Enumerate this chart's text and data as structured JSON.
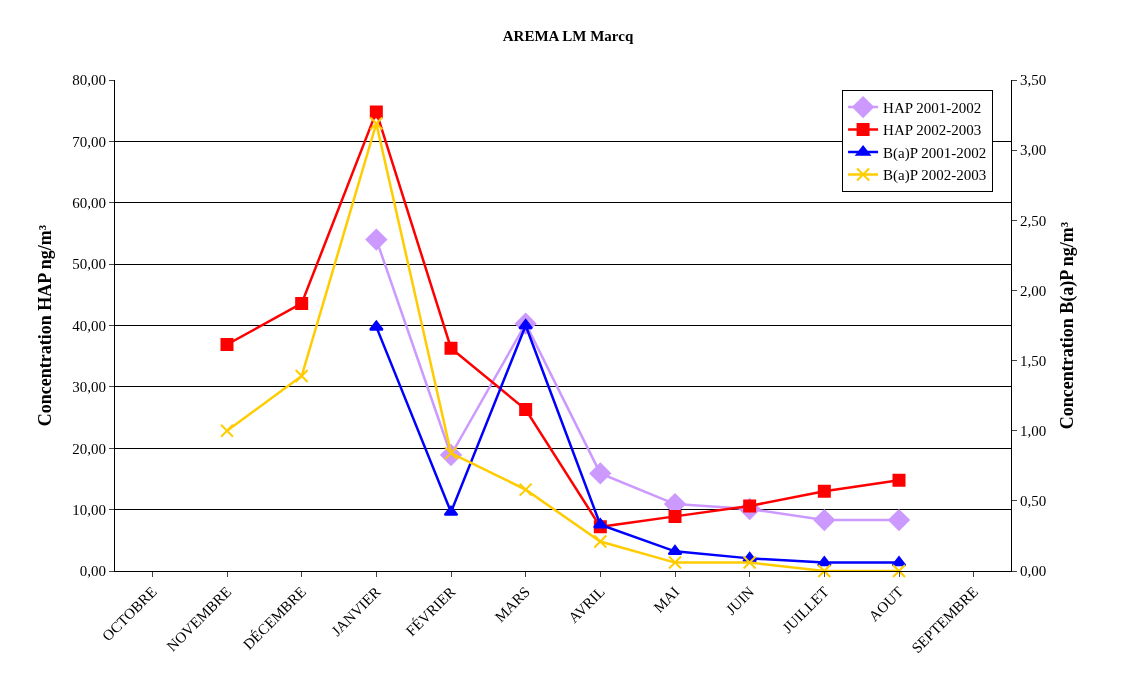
{
  "chart_data": {
    "type": "line",
    "title": "AREMA LM Marcq",
    "ylabel": "Concentration HAP ng/m³",
    "y2label": "Concentration B(a)P ng/m³",
    "categories": [
      "OCTOBRE",
      "NOVEMBRE",
      "DÉCEMBRE",
      "JANVIER",
      "FÉVRIER",
      "MARS",
      "AVRIL",
      "MAI",
      "JUIN",
      "JUILLET",
      "AOUT",
      "SEPTEMBRE"
    ],
    "series": [
      {
        "name": "HAP 2001-2002",
        "color": "#cc99ff",
        "marker": "diamond",
        "values": [
          null,
          null,
          null,
          54.0,
          18.9,
          40.3,
          15.9,
          10.9,
          10.1,
          8.3,
          8.3,
          null
        ]
      },
      {
        "name": "HAP 2002-2003",
        "color": "#ff0000",
        "marker": "square",
        "values": [
          null,
          36.9,
          43.6,
          74.8,
          36.3,
          26.3,
          7.2,
          8.9,
          10.6,
          13.0,
          14.8,
          null
        ]
      },
      {
        "name": "B(a)P 2001-2002",
        "color": "#0000ff",
        "marker": "triangle",
        "axis": "y2",
        "values": [
          null,
          null,
          null,
          1.74,
          0.42,
          1.75,
          0.33,
          0.14,
          0.09,
          0.06,
          0.06,
          null
        ]
      },
      {
        "name": "B(a)P 2002-2003",
        "color": "#ffcc00",
        "marker": "cross",
        "axis": "y2",
        "values": [
          null,
          1.0,
          1.39,
          3.19,
          0.84,
          0.58,
          0.21,
          0.06,
          0.06,
          0.0,
          0.0,
          null
        ]
      }
    ],
    "ylim": [
      0,
      80
    ],
    "yticks": [
      {
        "value": 0,
        "label": "0,00"
      },
      {
        "value": 10,
        "label": "10,00"
      },
      {
        "value": 20,
        "label": "20,00"
      },
      {
        "value": 30,
        "label": "30,00"
      },
      {
        "value": 40,
        "label": "40,00"
      },
      {
        "value": 50,
        "label": "50,00"
      },
      {
        "value": 60,
        "label": "60,00"
      },
      {
        "value": 70,
        "label": "70,00"
      },
      {
        "value": 80,
        "label": "80,00"
      }
    ],
    "y2lim": [
      0,
      3.5
    ],
    "y2ticks": [
      {
        "value": 0,
        "label": "0,00"
      },
      {
        "value": 0.5,
        "label": "0,50"
      },
      {
        "value": 1,
        "label": "1,00"
      },
      {
        "value": 1.5,
        "label": "1,50"
      },
      {
        "value": 2,
        "label": "2,00"
      },
      {
        "value": 2.5,
        "label": "2,50"
      },
      {
        "value": 3,
        "label": "3,00"
      },
      {
        "value": 3.5,
        "label": "3,50"
      }
    ],
    "grid": "y",
    "legend": "top right",
    "line_style": "solid"
  }
}
